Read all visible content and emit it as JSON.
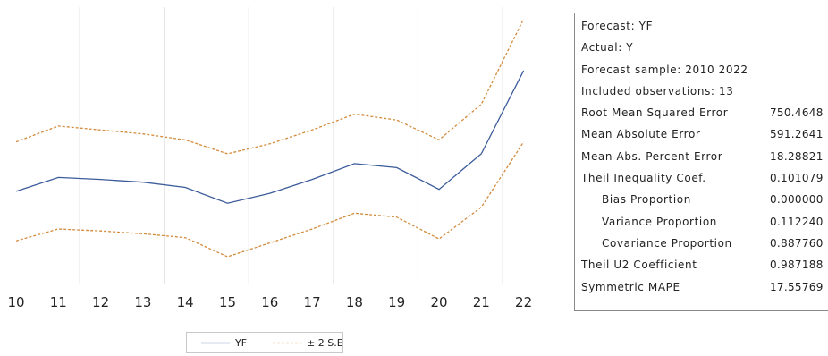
{
  "chart_data": {
    "type": "line",
    "x": [
      "10",
      "11",
      "12",
      "13",
      "14",
      "15",
      "16",
      "17",
      "18",
      "19",
      "20",
      "21",
      "22"
    ],
    "series": [
      {
        "name": "YF",
        "values": [
          3850,
          4200,
          4150,
          4080,
          3950,
          3550,
          3800,
          4150,
          4550,
          4450,
          3900,
          4800,
          6900
        ],
        "color": "#3b5b9a",
        "style": "solid"
      },
      {
        "name": "± 2 S.E.",
        "values": [
          5100,
          5500,
          5400,
          5300,
          5150,
          4800,
          5050,
          5400,
          5800,
          5650,
          5150,
          6050,
          8200
        ],
        "color": "#d38b3c",
        "style": "dashed"
      },
      {
        "name": "± 2 S.E.",
        "values": [
          2600,
          2900,
          2850,
          2780,
          2680,
          2200,
          2550,
          2900,
          3300,
          3200,
          2650,
          3450,
          5100
        ],
        "color": "#d38b3c",
        "style": "dashed",
        "legend": false
      }
    ],
    "ylim": [
      1500,
      8500
    ],
    "grid": "vertical",
    "legend": "bottom-center"
  },
  "stats": [
    {
      "label": "Forecast: YF",
      "value": ""
    },
    {
      "label": "Actual: Y",
      "value": ""
    },
    {
      "label": "Forecast sample: 2010 2022",
      "value": ""
    },
    {
      "label": "Included observations: 13",
      "value": ""
    },
    {
      "label": "Root Mean Squared Error",
      "value": "750.4648"
    },
    {
      "label": "Mean Absolute Error",
      "value": "591.2641"
    },
    {
      "label": "Mean Abs. Percent Error",
      "value": "18.28821"
    },
    {
      "label": "Theil Inequality Coef.",
      "value": "0.101079"
    },
    {
      "label": "Bias Proportion",
      "value": "0.000000",
      "indent": true
    },
    {
      "label": "Variance Proportion",
      "value": "0.112240",
      "indent": true
    },
    {
      "label": "Covariance Proportion",
      "value": "0.887760",
      "indent": true
    },
    {
      "label": "Theil U2 Coefficient",
      "value": "0.987188"
    },
    {
      "label": "Symmetric MAPE",
      "value": "17.55769"
    }
  ]
}
